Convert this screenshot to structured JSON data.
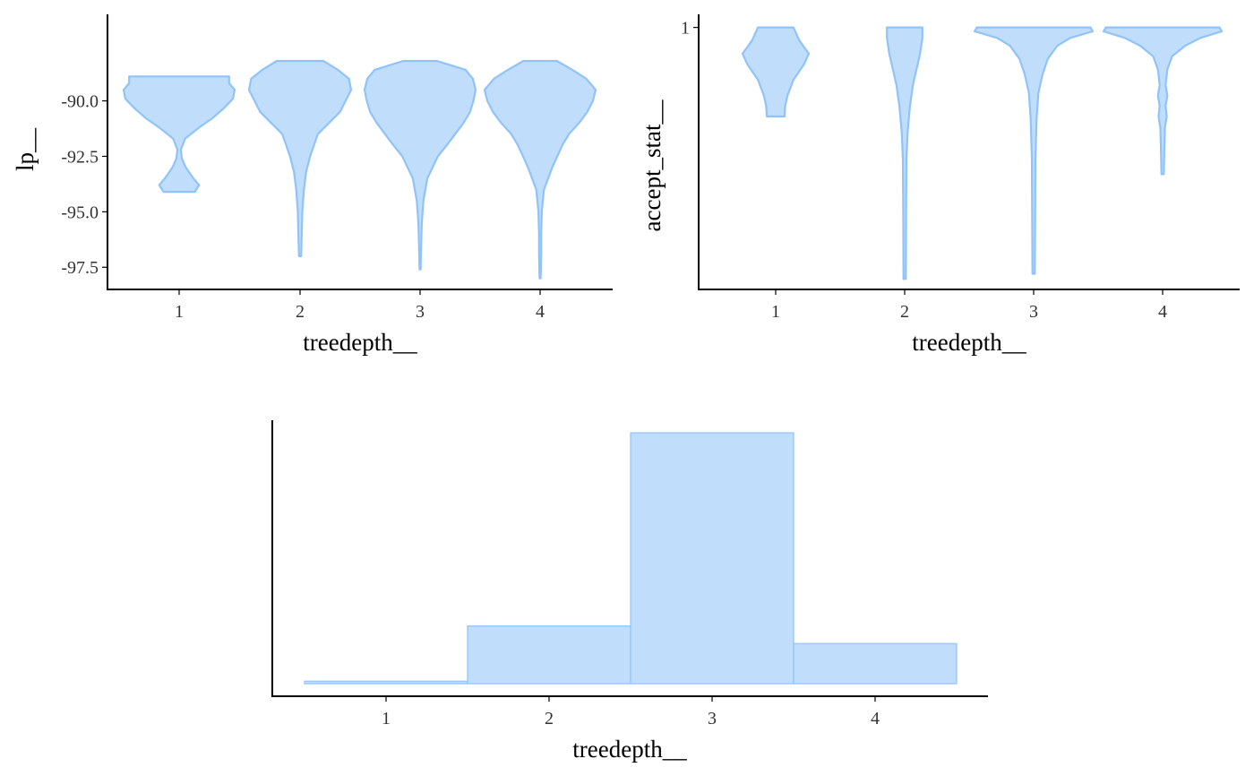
{
  "colors": {
    "fill": "#c0ddfb",
    "stroke": "#90c3f9",
    "axis": "#000000",
    "tick_text": "#333333"
  },
  "chart_data": [
    {
      "type": "violin",
      "title": "",
      "xlabel": "treedepth__",
      "ylabel": "lp__",
      "categories": [
        "1",
        "2",
        "3",
        "4"
      ],
      "ylim": [
        -98.5,
        -86.1
      ],
      "yticks": [
        -97.5,
        -95.0,
        -92.5,
        -90.0
      ],
      "ytick_labels": [
        "-97.5",
        "-95.0",
        "-92.5",
        "-90.0"
      ],
      "violins": [
        {
          "category": "1",
          "min": -94.1,
          "max": -88.9,
          "profile": [
            [
              -94.1,
              0.28
            ],
            [
              -93.8,
              0.36
            ],
            [
              -93.5,
              0.26
            ],
            [
              -93.0,
              0.12
            ],
            [
              -92.6,
              0.05
            ],
            [
              -92.2,
              0.03
            ],
            [
              -91.7,
              0.11
            ],
            [
              -91.2,
              0.36
            ],
            [
              -90.8,
              0.59
            ],
            [
              -90.3,
              0.82
            ],
            [
              -89.9,
              0.97
            ],
            [
              -89.5,
              1.0
            ],
            [
              -89.2,
              0.9
            ],
            [
              -88.9,
              0.9
            ]
          ]
        },
        {
          "category": "2",
          "min": -97.0,
          "max": -88.2,
          "profile": [
            [
              -97.0,
              0.02
            ],
            [
              -96.0,
              0.03
            ],
            [
              -95.0,
              0.04
            ],
            [
              -94.0,
              0.07
            ],
            [
              -93.2,
              0.11
            ],
            [
              -92.5,
              0.18
            ],
            [
              -92.0,
              0.25
            ],
            [
              -91.5,
              0.32
            ],
            [
              -91.0,
              0.52
            ],
            [
              -90.5,
              0.72
            ],
            [
              -90.0,
              0.82
            ],
            [
              -89.5,
              0.92
            ],
            [
              -89.0,
              0.88
            ],
            [
              -88.6,
              0.68
            ],
            [
              -88.2,
              0.42
            ]
          ]
        },
        {
          "category": "3",
          "min": -97.6,
          "max": -88.2,
          "profile": [
            [
              -97.6,
              0.01
            ],
            [
              -96.5,
              0.02
            ],
            [
              -95.5,
              0.03
            ],
            [
              -94.5,
              0.06
            ],
            [
              -93.5,
              0.13
            ],
            [
              -92.5,
              0.32
            ],
            [
              -92.0,
              0.48
            ],
            [
              -91.5,
              0.63
            ],
            [
              -91.0,
              0.78
            ],
            [
              -90.5,
              0.9
            ],
            [
              -90.0,
              0.96
            ],
            [
              -89.5,
              1.0
            ],
            [
              -89.0,
              0.95
            ],
            [
              -88.6,
              0.82
            ],
            [
              -88.2,
              0.3
            ]
          ]
        },
        {
          "category": "4",
          "min": -98.0,
          "max": -88.2,
          "profile": [
            [
              -98.0,
              0.01
            ],
            [
              -97.0,
              0.02
            ],
            [
              -96.0,
              0.02
            ],
            [
              -95.0,
              0.03
            ],
            [
              -94.0,
              0.07
            ],
            [
              -93.0,
              0.22
            ],
            [
              -92.0,
              0.4
            ],
            [
              -91.5,
              0.52
            ],
            [
              -91.0,
              0.7
            ],
            [
              -90.5,
              0.85
            ],
            [
              -90.0,
              0.95
            ],
            [
              -89.5,
              1.0
            ],
            [
              -89.0,
              0.83
            ],
            [
              -88.6,
              0.58
            ],
            [
              -88.2,
              0.3
            ]
          ]
        }
      ]
    },
    {
      "type": "violin",
      "title": "",
      "xlabel": "treedepth__",
      "ylabel": "accept_stat__",
      "categories": [
        "1",
        "2",
        "3",
        "4"
      ],
      "ylim": [
        0.0,
        1.05
      ],
      "yticks": [
        1
      ],
      "ytick_labels": [
        "1"
      ],
      "violins": [
        {
          "category": "1",
          "min": 0.66,
          "max": 1.0,
          "profile": [
            [
              0.66,
              0.15
            ],
            [
              0.7,
              0.16
            ],
            [
              0.74,
              0.2
            ],
            [
              0.8,
              0.3
            ],
            [
              0.86,
              0.48
            ],
            [
              0.9,
              0.56
            ],
            [
              0.95,
              0.4
            ],
            [
              1.0,
              0.3
            ]
          ]
        },
        {
          "category": "2",
          "min": 0.04,
          "max": 1.0,
          "profile": [
            [
              0.04,
              0.02
            ],
            [
              0.3,
              0.025
            ],
            [
              0.5,
              0.03
            ],
            [
              0.6,
              0.05
            ],
            [
              0.7,
              0.09
            ],
            [
              0.78,
              0.14
            ],
            [
              0.84,
              0.2
            ],
            [
              0.9,
              0.26
            ],
            [
              0.96,
              0.3
            ],
            [
              1.0,
              0.3
            ]
          ]
        },
        {
          "category": "3",
          "min": 0.06,
          "max": 1.0,
          "profile": [
            [
              0.06,
              0.02
            ],
            [
              0.3,
              0.025
            ],
            [
              0.5,
              0.03
            ],
            [
              0.65,
              0.05
            ],
            [
              0.75,
              0.08
            ],
            [
              0.82,
              0.15
            ],
            [
              0.88,
              0.24
            ],
            [
              0.93,
              0.4
            ],
            [
              0.96,
              0.62
            ],
            [
              0.985,
              1.0
            ],
            [
              1.0,
              0.96
            ]
          ]
        },
        {
          "category": "4",
          "min": 0.44,
          "max": 1.0,
          "profile": [
            [
              0.44,
              0.02
            ],
            [
              0.55,
              0.03
            ],
            [
              0.62,
              0.04
            ],
            [
              0.66,
              0.07
            ],
            [
              0.7,
              0.05
            ],
            [
              0.74,
              0.08
            ],
            [
              0.78,
              0.05
            ],
            [
              0.84,
              0.08
            ],
            [
              0.89,
              0.16
            ],
            [
              0.93,
              0.38
            ],
            [
              0.96,
              0.64
            ],
            [
              0.985,
              1.0
            ],
            [
              1.0,
              0.96
            ]
          ]
        }
      ]
    },
    {
      "type": "bar",
      "title": "",
      "xlabel": "treedepth__",
      "ylabel": "",
      "categories": [
        "1",
        "2",
        "3",
        "4"
      ],
      "values": [
        1,
        23,
        100,
        16
      ],
      "ylim": [
        0,
        105
      ],
      "yticks": []
    }
  ]
}
